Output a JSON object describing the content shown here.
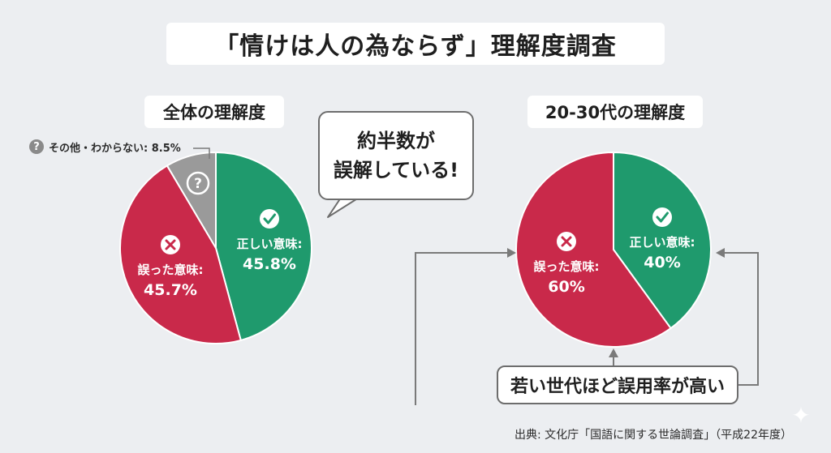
{
  "title": "「情けは人の為ならず」理解度調査",
  "bubble": {
    "line1": "約半数が",
    "line2": "誤解している!"
  },
  "callout": "若い世代ほど誤用率が高い",
  "source": "出典: 文化庁「国語に関する世論調査」（平成22年度）",
  "colors": {
    "correct": "#1f9a6d",
    "wrong": "#c9294a",
    "other": "#9a9a9a"
  },
  "icons": {
    "correct": "check-icon",
    "wrong": "cross-icon",
    "other": "question-icon"
  },
  "chart_data": [
    {
      "type": "pie",
      "title": "全体の理解度",
      "labels": [
        "正しい意味:",
        "誤った意味:",
        "その他・わからない:"
      ],
      "values": [
        45.8,
        45.7,
        8.5
      ],
      "value_labels": [
        "45.8%",
        "45.7%",
        "8.5%"
      ]
    },
    {
      "type": "pie",
      "title": "20-30代の理解度",
      "labels": [
        "正しい意味:",
        "誤った意味:"
      ],
      "values": [
        40,
        60
      ],
      "value_labels": [
        "40%",
        "60%"
      ]
    }
  ]
}
